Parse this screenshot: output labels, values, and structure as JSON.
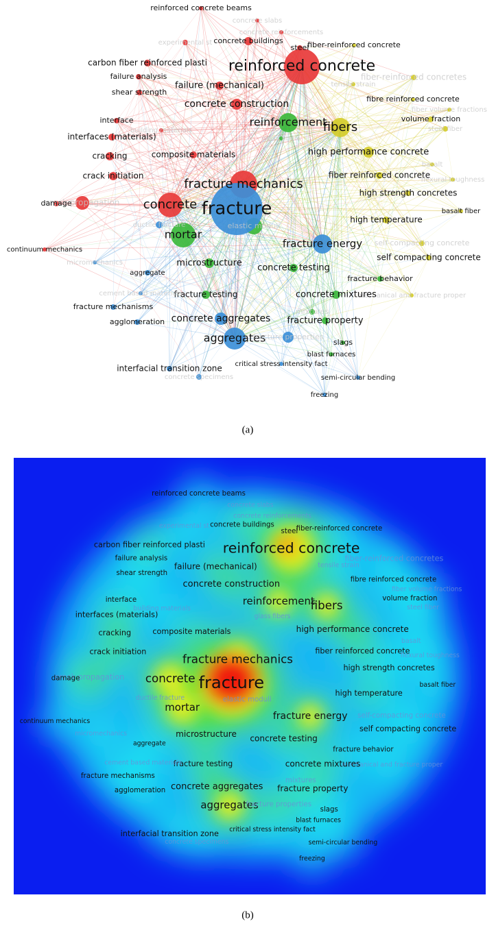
{
  "panels": [
    {
      "caption": "(a)"
    },
    {
      "caption": "(b)"
    }
  ],
  "terms": [
    {
      "label": "reinforced concrete",
      "color": "#e83a3a"
    },
    {
      "label": "reinforced concrete beams",
      "color": "#e83a3a"
    },
    {
      "label": "concrete slabs",
      "color": "#e83a3a"
    },
    {
      "label": "concrete reinforcements",
      "color": "#e83a3a"
    },
    {
      "label": "experimental st",
      "color": "#e83a3a"
    },
    {
      "label": "concrete buildings",
      "color": "#e83a3a"
    },
    {
      "label": "steel",
      "color": "#e83a3a"
    },
    {
      "label": "carbon fiber reinforced plasti",
      "color": "#e83a3a"
    },
    {
      "label": "failure analysis",
      "color": "#e83a3a"
    },
    {
      "label": "failure (mechanical)",
      "color": "#e83a3a"
    },
    {
      "label": "shear strength",
      "color": "#e83a3a"
    },
    {
      "label": "concrete construction",
      "color": "#e83a3a"
    },
    {
      "label": "interface",
      "color": "#e83a3a"
    },
    {
      "label": "interfaces (materials)",
      "color": "#e83a3a"
    },
    {
      "label": "building materials",
      "color": "#e83a3a"
    },
    {
      "label": "cracking",
      "color": "#e83a3a"
    },
    {
      "label": "crack initiation",
      "color": "#e83a3a"
    },
    {
      "label": "crack propagation",
      "color": "#e83a3a"
    },
    {
      "label": "damage",
      "color": "#e83a3a"
    },
    {
      "label": "composite materials",
      "color": "#e83a3a"
    },
    {
      "label": "fracture mechanics",
      "color": "#e83a3a"
    },
    {
      "label": "concrete",
      "color": "#e83a3a"
    },
    {
      "label": "continuum mechanics",
      "color": "#e83a3a"
    },
    {
      "label": "fiber-reinforced concrete",
      "color": "#d4cc2a"
    },
    {
      "label": "fiber-reinforced concretes",
      "color": "#d4cc2a"
    },
    {
      "label": "tensile strain",
      "color": "#d4cc2a"
    },
    {
      "label": "fibre reinforced concrete",
      "color": "#d4cc2a"
    },
    {
      "label": "fiber volume fractions",
      "color": "#d4cc2a"
    },
    {
      "label": "volume fraction",
      "color": "#d4cc2a"
    },
    {
      "label": "fibers",
      "color": "#d4cc2a"
    },
    {
      "label": "steel fiber",
      "color": "#d4cc2a"
    },
    {
      "label": "high performance concrete",
      "color": "#d4cc2a"
    },
    {
      "label": "basalt",
      "color": "#d4cc2a"
    },
    {
      "label": "fiber reinforced concrete",
      "color": "#d4cc2a"
    },
    {
      "label": "high strength concretes",
      "color": "#d4cc2a"
    },
    {
      "label": "flexural toughness",
      "color": "#d4cc2a"
    },
    {
      "label": "basalt fiber",
      "color": "#d4cc2a"
    },
    {
      "label": "high temperature",
      "color": "#d4cc2a"
    },
    {
      "label": "self-compacting concrete",
      "color": "#d4cc2a"
    },
    {
      "label": "self compacting concrete",
      "color": "#d4cc2a"
    },
    {
      "label": "mechanical and fracture proper",
      "color": "#d4cc2a"
    },
    {
      "label": "reinforcement",
      "color": "#3cb93c"
    },
    {
      "label": "glass fibers",
      "color": "#3cb93c"
    },
    {
      "label": "mortar",
      "color": "#3cb93c"
    },
    {
      "label": "elastic moduli",
      "color": "#3cb93c"
    },
    {
      "label": "fracture energy",
      "color": "#3c8fd8"
    },
    {
      "label": "microstructure",
      "color": "#3cb93c"
    },
    {
      "label": "concrete testing",
      "color": "#3cb93c"
    },
    {
      "label": "fracture behavior",
      "color": "#3cb93c"
    },
    {
      "label": "fracture testing",
      "color": "#3cb93c"
    },
    {
      "label": "concrete mixtures",
      "color": "#3cb93c"
    },
    {
      "label": "mixtures",
      "color": "#3cb93c"
    },
    {
      "label": "fracture property",
      "color": "#3cb93c"
    },
    {
      "label": "slags",
      "color": "#3cb93c"
    },
    {
      "label": "blast furnaces",
      "color": "#3cb93c"
    },
    {
      "label": "semi-circular bending",
      "color": "#3c8fd8"
    },
    {
      "label": "freezing",
      "color": "#3c8fd8"
    },
    {
      "label": "fracture",
      "color": "#3c8fd8"
    },
    {
      "label": "ductile fracture",
      "color": "#3c8fd8"
    },
    {
      "label": "micromechanics",
      "color": "#3c8fd8"
    },
    {
      "label": "aggregate",
      "color": "#3c8fd8"
    },
    {
      "label": "cement based materials",
      "color": "#3c8fd8"
    },
    {
      "label": "fracture mechanisms",
      "color": "#3c8fd8"
    },
    {
      "label": "agglomeration",
      "color": "#3c8fd8"
    },
    {
      "label": "concrete aggregates",
      "color": "#3c8fd8"
    },
    {
      "label": "aggregates",
      "color": "#3c8fd8"
    },
    {
      "label": "fracture properties",
      "color": "#3c8fd8"
    },
    {
      "label": "interfacial transition zone",
      "color": "#3c8fd8"
    },
    {
      "label": "critical stress intensity fact",
      "color": "#3c8fd8"
    },
    {
      "label": "concrete specimens",
      "color": "#3c8fd8"
    }
  ]
}
